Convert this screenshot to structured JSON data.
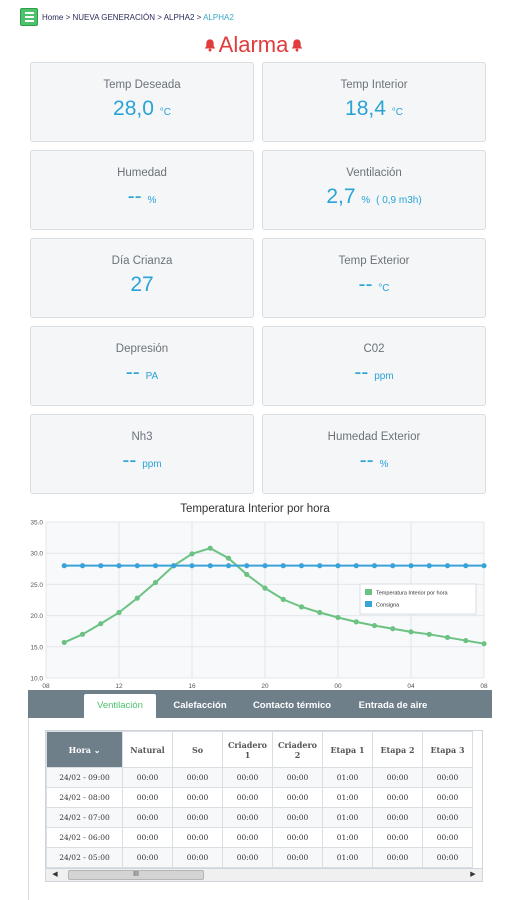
{
  "breadcrumb": {
    "home": "Home",
    "sep": " > ",
    "level1": "NUEVA GENERACIÓN",
    "level2": "ALPHA2",
    "current": "ALPHA2"
  },
  "alarm": {
    "label": "Alarma",
    "color": "#e23b3b",
    "icon": "bell-icon"
  },
  "cards": [
    {
      "label": "Temp Deseada",
      "value": "28,0",
      "unit": "°C",
      "extra": ""
    },
    {
      "label": "Temp Interior",
      "value": "18,4",
      "unit": "°C",
      "extra": ""
    },
    {
      "label": "Humedad",
      "value": "--",
      "unit": "%",
      "extra": ""
    },
    {
      "label": "Ventilación",
      "value": "2,7",
      "unit": "%",
      "extra": "( 0,9 m3h)"
    },
    {
      "label": "Día Crianza",
      "value": "27",
      "unit": "",
      "extra": ""
    },
    {
      "label": "Temp Exterior",
      "value": "--",
      "unit": "°C",
      "extra": ""
    },
    {
      "label": "Depresión",
      "value": "--",
      "unit": "PA",
      "extra": ""
    },
    {
      "label": "C02",
      "value": "--",
      "unit": "ppm",
      "extra": ""
    },
    {
      "label": "Nh3",
      "value": "--",
      "unit": "ppm",
      "extra": ""
    },
    {
      "label": "Humedad Exterior",
      "value": "--",
      "unit": "%",
      "extra": ""
    }
  ],
  "chart_data": {
    "type": "line",
    "title": "Temperatura Interior por hora",
    "x_tick_labels": [
      "08",
      "12",
      "16",
      "20",
      "00",
      "04",
      "08"
    ],
    "ylim": [
      10,
      35
    ],
    "y_ticks": [
      "10.0",
      "15.0",
      "20.0",
      "25.0",
      "30.0",
      "35.0"
    ],
    "x": [
      9,
      10,
      11,
      12,
      13,
      14,
      15,
      16,
      17,
      18,
      19,
      20,
      21,
      22,
      23,
      24,
      25,
      26,
      27,
      28,
      29,
      30,
      31,
      32
    ],
    "series": [
      {
        "name": "Temperatura Interior por hora",
        "color": "#6cc283",
        "values": [
          15.7,
          17.0,
          18.7,
          20.5,
          22.8,
          25.3,
          28.0,
          29.9,
          30.8,
          29.2,
          26.6,
          24.4,
          22.6,
          21.4,
          20.5,
          19.7,
          19.0,
          18.4,
          17.9,
          17.4,
          17.0,
          16.5,
          16.0,
          15.5
        ]
      },
      {
        "name": "Consigna",
        "color": "#39a3d8",
        "values": [
          28,
          28,
          28,
          28,
          28,
          28,
          28,
          28,
          28,
          28,
          28,
          28,
          28,
          28,
          28,
          28,
          28,
          28,
          28,
          28,
          28,
          28,
          28,
          28
        ]
      }
    ],
    "legend": "right",
    "grid": true
  },
  "tabs": [
    "Ventilación",
    "Calefacción",
    "Contacto térmico",
    "Entrada de aire"
  ],
  "table": {
    "headers": [
      "Hora",
      "Natural",
      "So",
      "Criadero 1",
      "Criadero 2",
      "Etapa 1",
      "Etapa 2",
      "Etapa 3"
    ],
    "rows": [
      [
        "24/02 - 09:00",
        "00:00",
        "00:00",
        "00:00",
        "00:00",
        "01:00",
        "00:00",
        "00:00"
      ],
      [
        "24/02 - 08:00",
        "00:00",
        "00:00",
        "00:00",
        "00:00",
        "01:00",
        "00:00",
        "00:00"
      ],
      [
        "24/02 - 07:00",
        "00:00",
        "00:00",
        "00:00",
        "00:00",
        "01:00",
        "00:00",
        "00:00"
      ],
      [
        "24/02 - 06:00",
        "00:00",
        "00:00",
        "00:00",
        "00:00",
        "01:00",
        "00:00",
        "00:00"
      ],
      [
        "24/02 - 05:00",
        "00:00",
        "00:00",
        "00:00",
        "00:00",
        "01:00",
        "00:00",
        "00:00"
      ]
    ]
  },
  "scrollbar": {
    "thumb": "III"
  }
}
